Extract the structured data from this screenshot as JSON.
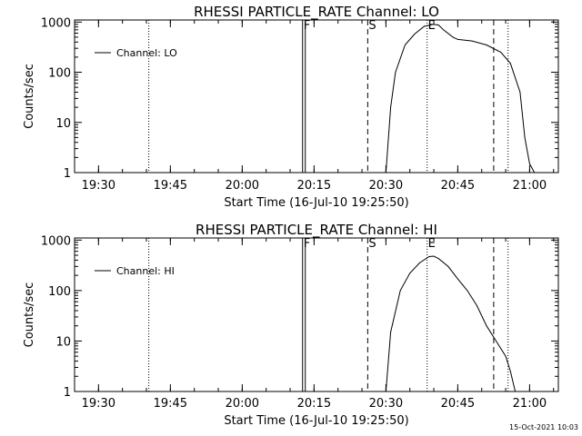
{
  "footer": {
    "timestamp": "15-Oct-2021 10:03"
  },
  "chart_data": [
    {
      "type": "line",
      "title": "RHESSI PARTICLE_RATE Channel: LO",
      "xlabel": "Start Time (16-Jul-10 19:25:50)",
      "ylabel": "Counts/sec",
      "yscale": "log",
      "ylim": [
        1,
        1100
      ],
      "x_axis_minutes_since_1925": [
        0,
        101
      ],
      "xticks": [
        "19:30",
        "19:45",
        "20:00",
        "20:15",
        "20:30",
        "20:45",
        "21:00"
      ],
      "yticks": [
        "1",
        "10",
        "100",
        "1000"
      ],
      "legend": {
        "position": "top-left",
        "label": "Channel: LO"
      },
      "markers": [
        {
          "time_min": 15.5,
          "label": "",
          "style": "dotted"
        },
        {
          "time_min": 47.6,
          "label": "F",
          "style": "solid"
        },
        {
          "time_min": 61.2,
          "label": "S",
          "style": "dashed"
        },
        {
          "time_min": 73.6,
          "label": "E",
          "style": "dotted"
        },
        {
          "time_min": 87.5,
          "label": "",
          "style": "dashed"
        },
        {
          "time_min": 90.5,
          "label": "",
          "style": "dotted"
        }
      ],
      "series": [
        {
          "name": "Channel: LO",
          "x": [
            "20:30",
            "20:31",
            "20:32",
            "20:34",
            "20:36",
            "20:38",
            "20:40",
            "20:41",
            "20:42",
            "20:44",
            "20:45",
            "20:48",
            "20:51",
            "20:54",
            "20:56",
            "20:58",
            "20:59",
            "21:00",
            "21:01"
          ],
          "y": [
            1,
            20,
            100,
            350,
            580,
            820,
            900,
            870,
            700,
            500,
            450,
            420,
            350,
            250,
            150,
            40,
            5,
            1.5,
            1
          ]
        }
      ]
    },
    {
      "type": "line",
      "title": "RHESSI PARTICLE_RATE Channel: HI",
      "xlabel": "Start Time (16-Jul-10 19:25:50)",
      "ylabel": "Counts/sec",
      "yscale": "log",
      "ylim": [
        1,
        1100
      ],
      "x_axis_minutes_since_1925": [
        0,
        101
      ],
      "xticks": [
        "19:30",
        "19:45",
        "20:00",
        "20:15",
        "20:30",
        "20:45",
        "21:00"
      ],
      "yticks": [
        "1",
        "10",
        "100",
        "1000"
      ],
      "legend": {
        "position": "top-left",
        "label": "Channel: HI"
      },
      "markers": [
        {
          "time_min": 15.5,
          "label": "",
          "style": "dotted"
        },
        {
          "time_min": 47.6,
          "label": "F",
          "style": "solid"
        },
        {
          "time_min": 61.2,
          "label": "S",
          "style": "dashed"
        },
        {
          "time_min": 73.6,
          "label": "E",
          "style": "dotted"
        },
        {
          "time_min": 87.5,
          "label": "",
          "style": "dashed"
        },
        {
          "time_min": 90.5,
          "label": "",
          "style": "dotted"
        }
      ],
      "series": [
        {
          "name": "Channel: HI",
          "x": [
            "20:30",
            "20:31",
            "20:33",
            "20:35",
            "20:37",
            "20:39",
            "20:40",
            "20:41",
            "20:43",
            "20:45",
            "20:47",
            "20:49",
            "20:51",
            "20:53",
            "20:55",
            "20:56",
            "20:57"
          ],
          "y": [
            1,
            15,
            100,
            220,
            350,
            470,
            480,
            430,
            300,
            170,
            100,
            50,
            20,
            10,
            5,
            2.5,
            1
          ]
        }
      ]
    }
  ]
}
